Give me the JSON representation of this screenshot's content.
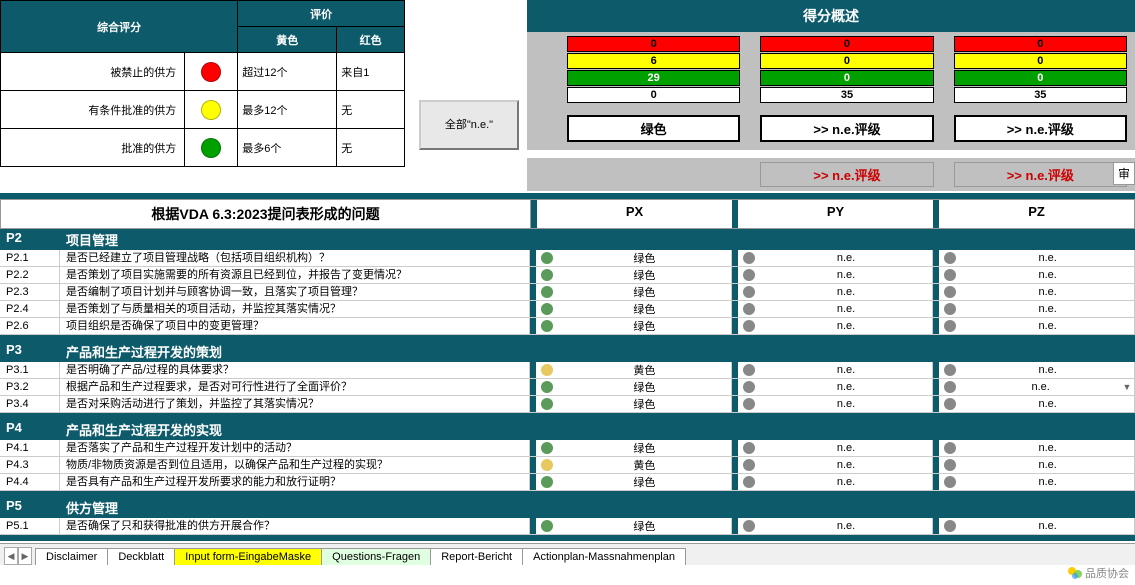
{
  "colors": {
    "teal": "#0d5a6a",
    "red": "#ff0000",
    "yellow": "#ffff00",
    "green": "#00a000",
    "gray_bg": "#c0c0c0"
  },
  "legend": {
    "title_main": "综合评分",
    "title_eval": "评价",
    "col_yellow": "黄色",
    "col_red": "红色",
    "rows": [
      {
        "label": "被禁止的供方",
        "dot": "red",
        "yellow_text": "超过12个",
        "red_text": "来自1"
      },
      {
        "label": "有条件批准的供方",
        "dot": "yellow",
        "yellow_text": "最多12个",
        "red_text": "无"
      },
      {
        "label": "批准的供方",
        "dot": "green",
        "yellow_text": "最多6个",
        "red_text": "无"
      }
    ]
  },
  "all_ne_button": "全部\"n.e.\"",
  "overview": {
    "title": "得分概述",
    "rows": [
      {
        "cls": "sc-red",
        "vals": [
          "0",
          "0",
          "0"
        ]
      },
      {
        "cls": "sc-yellow",
        "vals": [
          "6",
          "0",
          "0"
        ]
      },
      {
        "cls": "sc-green",
        "vals": [
          "29",
          "0",
          "0"
        ]
      },
      {
        "cls": "sc-white",
        "vals": [
          "0",
          "35",
          "35"
        ]
      }
    ],
    "ratings": [
      "绿色",
      ">> n.e.评级",
      ">> n.e.评级"
    ],
    "ne_warnings": [
      "",
      ">> n.e.评级",
      ">> n.e.评级"
    ],
    "shen": "审"
  },
  "grid": {
    "title": "根据VDA 6.3:2023提问表形成的问题",
    "cols": [
      "PX",
      "PY",
      "PZ"
    ],
    "sections": [
      {
        "id": "P2",
        "title": "项目管理",
        "rows": [
          {
            "id": "P2.1",
            "text": "是否已经建立了项目管理战略（包括项目组织机构）？",
            "px": [
              "green",
              "绿色"
            ],
            "py": [
              "gray",
              "n.e."
            ],
            "pz": [
              "gray",
              "n.e."
            ]
          },
          {
            "id": "P2.2",
            "text": "是否策划了项目实施需要的所有资源且已经到位，并报告了变更情况？",
            "px": [
              "green",
              "绿色"
            ],
            "py": [
              "gray",
              "n.e."
            ],
            "pz": [
              "gray",
              "n.e."
            ]
          },
          {
            "id": "P2.3",
            "text": "是否编制了项目计划并与顾客协调一致，且落实了项目管理？",
            "px": [
              "green",
              "绿色"
            ],
            "py": [
              "gray",
              "n.e."
            ],
            "pz": [
              "gray",
              "n.e."
            ]
          },
          {
            "id": "P2.4",
            "text": "是否策划了与质量相关的项目活动，并监控其落实情况？",
            "px": [
              "green",
              "绿色"
            ],
            "py": [
              "gray",
              "n.e."
            ],
            "pz": [
              "gray",
              "n.e."
            ]
          },
          {
            "id": "P2.6",
            "text": "项目组织是否确保了项目中的变更管理？",
            "px": [
              "green",
              "绿色"
            ],
            "py": [
              "gray",
              "n.e."
            ],
            "pz": [
              "gray",
              "n.e."
            ]
          }
        ]
      },
      {
        "id": "P3",
        "title": "产品和生产过程开发的策划",
        "rows": [
          {
            "id": "P3.1",
            "text": "是否明确了产品/过程的具体要求？",
            "px": [
              "yellow",
              "黄色"
            ],
            "py": [
              "gray",
              "n.e."
            ],
            "pz": [
              "gray",
              "n.e."
            ]
          },
          {
            "id": "P3.2",
            "text": "根据产品和生产过程要求，是否对可行性进行了全面评价？",
            "px": [
              "green",
              "绿色"
            ],
            "py": [
              "gray",
              "n.e."
            ],
            "pz": [
              "gray",
              "n.e.",
              "dd"
            ]
          },
          {
            "id": "P3.4",
            "text": "是否对采购活动进行了策划，并监控了其落实情况？",
            "px": [
              "green",
              "绿色"
            ],
            "py": [
              "gray",
              "n.e."
            ],
            "pz": [
              "gray",
              "n.e."
            ]
          }
        ]
      },
      {
        "id": "P4",
        "title": "产品和生产过程开发的实现",
        "rows": [
          {
            "id": "P4.1",
            "text": "是否落实了产品和生产过程开发计划中的活动？",
            "px": [
              "green",
              "绿色"
            ],
            "py": [
              "gray",
              "n.e."
            ],
            "pz": [
              "gray",
              "n.e."
            ]
          },
          {
            "id": "P4.3",
            "text": "物质/非物质资源是否到位且适用，以确保产品和生产过程的实现？",
            "px": [
              "yellow",
              "黄色"
            ],
            "py": [
              "gray",
              "n.e."
            ],
            "pz": [
              "gray",
              "n.e."
            ]
          },
          {
            "id": "P4.4",
            "text": "是否具有产品和生产过程开发所要求的能力和放行证明？",
            "px": [
              "green",
              "绿色"
            ],
            "py": [
              "gray",
              "n.e."
            ],
            "pz": [
              "gray",
              "n.e."
            ]
          }
        ]
      },
      {
        "id": "P5",
        "title": "供方管理",
        "rows": [
          {
            "id": "P5.1",
            "text": "是否确保了只和获得批准的供方开展合作？",
            "px": [
              "green",
              "绿色"
            ],
            "py": [
              "gray",
              "n.e."
            ],
            "pz": [
              "gray",
              "n.e."
            ]
          }
        ]
      }
    ]
  },
  "tabs": [
    {
      "label": "Disclaimer",
      "cls": ""
    },
    {
      "label": "Deckblatt",
      "cls": ""
    },
    {
      "label": "Input form-EingabeMaske",
      "cls": "bg-yellow"
    },
    {
      "label": "Questions-Fragen",
      "cls": "active"
    },
    {
      "label": "Report-Bericht",
      "cls": ""
    },
    {
      "label": "Actionplan-Massnahmenplan",
      "cls": ""
    }
  ],
  "watermark": "品质协会"
}
